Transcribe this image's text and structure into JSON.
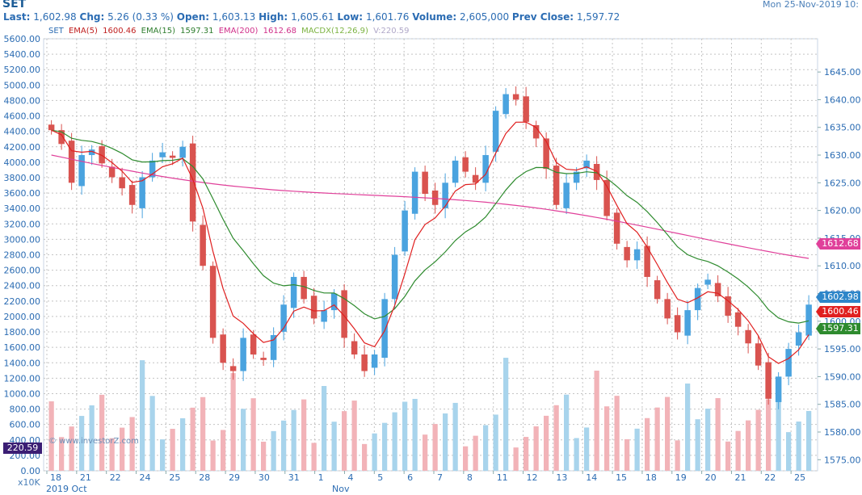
{
  "header": {
    "symbol": "SET",
    "datetime": "Mon 25-Nov-2019 10:",
    "last_label": "Last:",
    "last": "1,602.98",
    "chg_label": "Chg:",
    "chg": "5.26 (0.33 %)",
    "open_label": "Open:",
    "open": "1,603.13",
    "high_label": "High:",
    "high": "1,605.61",
    "low_label": "Low:",
    "low": "1,601.76",
    "volume_label": "Volume:",
    "volume": "2,605,000",
    "prev_label": "Prev Close:",
    "prev": "1,597.72"
  },
  "legend": {
    "set": "SET",
    "ema5": "EMA(5)",
    "ema5_val": "1600.46",
    "ema15": "EMA(15)",
    "ema15_val": "1597.31",
    "ema200": "EMA(200)",
    "ema200_val": "1612.68",
    "macd": "MACDX(12,26,9)",
    "vol": "V:220.59"
  },
  "tags": {
    "ema200": "1612.68",
    "last": "1602.98",
    "ema5": "1600.46",
    "ema15": "1597.31",
    "volume": "220.59"
  },
  "colors": {
    "up": "#4aa3df",
    "down": "#d9534f",
    "ema5": "#e02020",
    "ema15": "#2e8b2e",
    "ema200": "#e0409a",
    "vol_up": "#a8d4ec",
    "vol_down": "#f2b3b8"
  },
  "footer": {
    "watermark": "© www.investorZ.com",
    "scale": "x10K",
    "month1": "2019 Oct",
    "month2": "Nov"
  },
  "chart_data": {
    "type": "candlestick",
    "y_right_ticks": [
      "1645.00",
      "1640.00",
      "1635.00",
      "1630.00",
      "1625.00",
      "1620.00",
      "1615.00",
      "1610.00",
      "1605.00",
      "1600.00",
      "1595.00",
      "1590.00",
      "1585.00",
      "1580.00",
      "1575.00"
    ],
    "y_left_ticks": [
      "5600.00",
      "5400.00",
      "5200.00",
      "5000.00",
      "4800.00",
      "4600.00",
      "4400.00",
      "4200.00",
      "4000.00",
      "3800.00",
      "3600.00",
      "3400.00",
      "3200.00",
      "3000.00",
      "2800.00",
      "2600.00",
      "2400.00",
      "2200.00",
      "2000.00",
      "1800.00",
      "1600.00",
      "1400.00",
      "1200.00",
      "1000.00",
      "800.00",
      "600.00",
      "400.00",
      "200.00",
      "0.00"
    ],
    "ylim_price": [
      1573,
      1651
    ],
    "ylim_volume": [
      0,
      5600
    ],
    "days": [
      "18",
      "21",
      "22",
      "24",
      "25",
      "28",
      "29",
      "30",
      "31",
      "1",
      "4",
      "5",
      "6",
      "7",
      "8",
      "11",
      "12",
      "13",
      "14",
      "15",
      "18",
      "19",
      "20",
      "21",
      "22",
      "25"
    ],
    "closes": [
      1634.5,
      1632.0,
      1625.0,
      1630.0,
      1631.0,
      1628.5,
      1626.0,
      1624.0,
      1621.0,
      1626.0,
      1629.0,
      1630.5,
      1629.5,
      1631.5,
      1618.0,
      1610.0,
      1597.0,
      1592.5,
      1591.0,
      1597.0,
      1594.0,
      1593.0,
      1597.5,
      1603.0,
      1608.0,
      1604.0,
      1600.5,
      1602.0,
      1605.0,
      1597.0,
      1594.0,
      1591.0,
      1594.0,
      1604.0,
      1612.0,
      1620.0,
      1627.0,
      1623.0,
      1621.0,
      1625.0,
      1629.0,
      1627.0,
      1625.0,
      1630.0,
      1638.0,
      1641.0,
      1640.0,
      1636.0,
      1633.0,
      1627.5,
      1621.0,
      1625.0,
      1627.0,
      1629.0,
      1625.5,
      1619.0,
      1614.0,
      1611.0,
      1613.0,
      1608.0,
      1604.0,
      1600.5,
      1598.0,
      1602.0,
      1606.0,
      1607.5,
      1604.5,
      1601.0,
      1599.0,
      1596.0,
      1592.0,
      1586.0,
      1590.0,
      1595.0,
      1598.0,
      1603.0
    ],
    "ema5_last": 1600.46,
    "ema15_last": 1597.31,
    "ema200_last": 1612.68
  }
}
